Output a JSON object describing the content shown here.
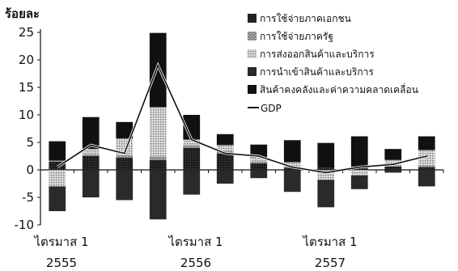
{
  "chart_data": {
    "type": "bar",
    "stacked": true,
    "ylabel": "ร้อยละ",
    "ylim": [
      -10,
      25
    ],
    "yticks": [
      25,
      20,
      15,
      10,
      5,
      0,
      -5,
      -10
    ],
    "quarters": 12,
    "category_labels": [
      {
        "line1": "ไตรมาส 1",
        "line2": "2555",
        "quarter_index": 0
      },
      {
        "line1": "ไตรมาส 1",
        "line2": "2556",
        "quarter_index": 4
      },
      {
        "line1": "ไตรมาส 1",
        "line2": "2557",
        "quarter_index": 8
      }
    ],
    "legend_position": "upper-right",
    "series": [
      {
        "name": "การใช้จ่ายภาคเอกชน",
        "color": "#1a1a1a",
        "values": [
          1.5,
          2.5,
          2.2,
          1.8,
          4.0,
          3.0,
          1.2,
          0.4,
          0.4,
          0.5,
          0.6,
          0.5
        ]
      },
      {
        "name": "การใช้จ่ายภาครัฐ",
        "color": "#6e6e6e",
        "values": [
          0.2,
          0.3,
          0.5,
          0.6,
          0.5,
          0.5,
          0.3,
          0.2,
          -0.3,
          0.1,
          0.2,
          0.3
        ]
      },
      {
        "name": "การส่งออกสินค้าและบริการ",
        "color": "#b5b5b5",
        "values": [
          -3.0,
          1.0,
          3.0,
          9.0,
          1.0,
          1.0,
          0.8,
          0.8,
          -1.5,
          -1.0,
          1.0,
          2.8
        ]
      },
      {
        "name": "การนำเข้าสินค้าและบริการ",
        "color": "#3a3a3a",
        "values": [
          -4.5,
          -5.0,
          -5.5,
          -9.0,
          -4.5,
          -2.5,
          -1.5,
          -4.0,
          -5.0,
          -2.5,
          -0.5,
          -3.0
        ]
      },
      {
        "name": "สินค้าคงคลังและค่าความคลาดเคลื่อน",
        "color": "#111111",
        "values": [
          3.5,
          5.8,
          3.0,
          13.5,
          4.5,
          2.0,
          2.3,
          4.0,
          4.5,
          5.5,
          2.0,
          2.5
        ]
      }
    ],
    "line": {
      "name": "GDP",
      "color": "#111111",
      "values": [
        0.5,
        4.5,
        3.0,
        19.0,
        5.5,
        3.0,
        2.5,
        0.5,
        -0.5,
        0.5,
        1.0,
        2.5
      ]
    }
  }
}
